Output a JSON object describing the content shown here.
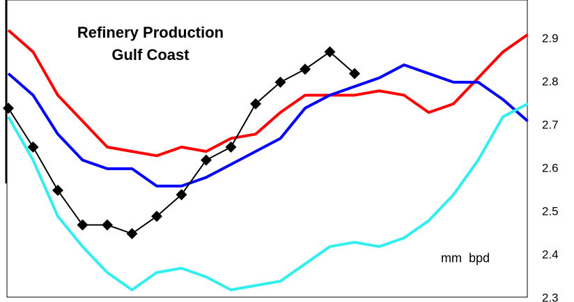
{
  "chart_data": {
    "type": "line",
    "title": "Refinery Production",
    "subtitle": "Gulf Coast",
    "annotation": "mm  bpd",
    "categories": [
      null,
      null,
      null,
      null,
      null,
      null,
      null,
      null,
      null,
      null,
      null,
      null,
      null,
      null,
      null,
      null,
      null,
      null,
      null,
      null,
      null,
      null
    ],
    "ylim": [
      2.3,
      2.99
    ],
    "yticks": [
      2.3,
      2.4,
      2.5,
      2.6,
      2.7,
      2.8,
      2.9
    ],
    "y_axis_side": "right",
    "grid": false,
    "series": [
      {
        "color": "#ff0000",
        "values": [
          2.92,
          2.87,
          2.77,
          2.71,
          2.65,
          2.64,
          2.63,
          2.65,
          2.64,
          2.67,
          2.68,
          2.73,
          2.77,
          2.77,
          2.77,
          2.78,
          2.77,
          2.73,
          2.75,
          2.81,
          2.87,
          2.91
        ]
      },
      {
        "color": "#0000ff",
        "values": [
          2.82,
          2.77,
          2.68,
          2.62,
          2.6,
          2.6,
          2.56,
          2.56,
          2.58,
          2.61,
          2.64,
          2.67,
          2.74,
          2.77,
          2.79,
          2.81,
          2.84,
          2.82,
          2.8,
          2.8,
          2.76,
          2.71
        ]
      },
      {
        "color": "#33eeee",
        "values": [
          2.72,
          2.62,
          2.49,
          2.42,
          2.36,
          2.32,
          2.36,
          2.37,
          2.35,
          2.32,
          2.33,
          2.34,
          2.38,
          2.42,
          2.43,
          2.42,
          2.44,
          2.48,
          2.54,
          2.62,
          2.72,
          2.75
        ]
      },
      {
        "color": "#000000",
        "marker": "diamond",
        "values": [
          2.74,
          2.65,
          2.55,
          2.47,
          2.47,
          2.45,
          2.49,
          2.54,
          2.62,
          2.65,
          2.75,
          2.8,
          2.83,
          2.87,
          2.82,
          null,
          null,
          null,
          null,
          null,
          null,
          null
        ]
      }
    ]
  }
}
